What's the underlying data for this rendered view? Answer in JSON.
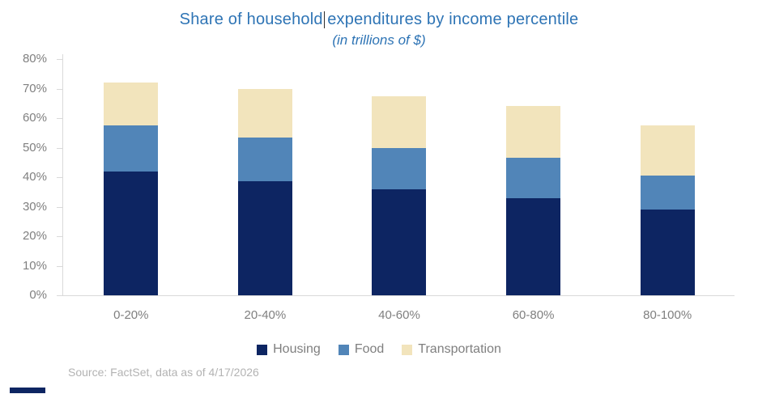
{
  "header": {
    "title_before_cursor": "Share of household",
    "title_after_cursor": "expenditures by income percentile",
    "subtitle": "(in trillions of $)"
  },
  "chart_data": {
    "type": "bar",
    "stacked": true,
    "title": "Share of household expenditures by income percentile",
    "subtitle": "(in trillions of $)",
    "categories": [
      "0-20%",
      "20-40%",
      "40-60%",
      "60-80%",
      "80-100%"
    ],
    "series": [
      {
        "name": "Housing",
        "color": "#0D2562",
        "values": [
          42,
          38.5,
          36,
          33,
          29
        ]
      },
      {
        "name": "Food",
        "color": "#5185B8",
        "values": [
          15.5,
          15,
          14,
          13.5,
          11.5
        ]
      },
      {
        "name": "Transportation",
        "color": "#F2E4BC",
        "values": [
          14.5,
          16.5,
          17.5,
          17.5,
          17
        ]
      }
    ],
    "stack_totals": [
      72,
      70,
      67.5,
      64,
      57.5
    ],
    "xlabel": "",
    "ylabel": "",
    "y_axis": {
      "min": 0,
      "max": 80,
      "tick_step": 10,
      "tick_labels": [
        "0%",
        "10%",
        "20%",
        "30%",
        "40%",
        "50%",
        "60%",
        "70%",
        "80%"
      ]
    },
    "grid": false,
    "legend_position": "bottom"
  },
  "footer": {
    "source": "Source: FactSet, data as of 4/17/2026"
  },
  "colors": {
    "title_text": "#2E74B5",
    "axis_line": "#D9D9D9",
    "axis_label_text": "#808080",
    "legend_text": "#7F7F7F",
    "source_text": "#B3B3B3",
    "housing": "#0D2562",
    "food": "#5185B8",
    "transportation": "#F2E4BC"
  }
}
